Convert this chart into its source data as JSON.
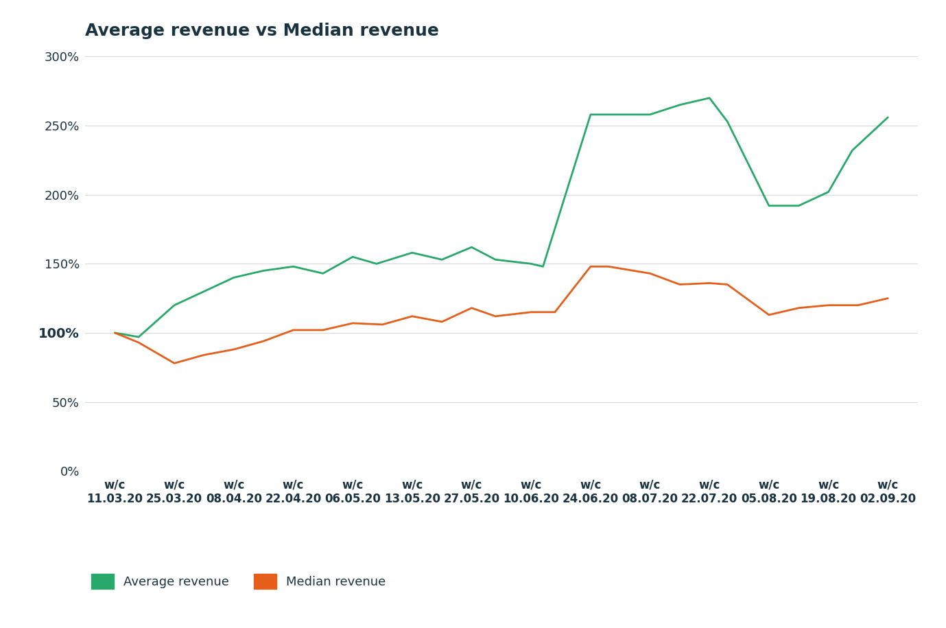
{
  "title": "Average revenue vs Median revenue",
  "x_labels": [
    "w/c\n11.03.20",
    "w/c\n25.03.20",
    "w/c\n08.04.20",
    "w/c\n22.04.20",
    "w/c\n06.05.20",
    "w/c\n13.05.20",
    "w/c\n27.05.20",
    "w/c\n10.06.20",
    "w/c\n24.06.20",
    "w/c\n08.07.20",
    "w/c\n22.07.20",
    "w/c\n05.08.20",
    "w/c\n19.08.20",
    "w/c\n02.09.20"
  ],
  "avg_color": "#28a86a",
  "med_color": "#e55e1a",
  "background_color": "#ffffff",
  "grid_color": "#d8d8d8",
  "title_color": "#1a3340",
  "tick_color": "#1a3340",
  "legend_avg": "Average revenue",
  "legend_med": "Median revenue",
  "ylim": [
    0,
    300
  ],
  "yticks": [
    0,
    50,
    100,
    150,
    200,
    250,
    300
  ],
  "avg_x": [
    0,
    0.4,
    1,
    1.5,
    2,
    2.5,
    3,
    3.5,
    4,
    4.4,
    5,
    5.5,
    6,
    6.4,
    7,
    7.2,
    8,
    8.4,
    9,
    9.5,
    10,
    10.3,
    11,
    11.5,
    12,
    12.4,
    13
  ],
  "avg_y": [
    100,
    97,
    120,
    130,
    140,
    145,
    148,
    143,
    155,
    150,
    158,
    153,
    162,
    153,
    150,
    148,
    258,
    258,
    258,
    265,
    270,
    253,
    192,
    192,
    202,
    232,
    256
  ],
  "med_x": [
    0,
    0.4,
    1,
    1.5,
    2,
    2.5,
    3,
    3.5,
    4,
    4.5,
    5,
    5.5,
    6,
    6.4,
    7,
    7.4,
    8,
    8.3,
    9,
    9.5,
    10,
    10.3,
    11,
    11.5,
    12,
    12.5,
    13
  ],
  "med_y": [
    100,
    93,
    78,
    84,
    88,
    94,
    102,
    102,
    107,
    106,
    112,
    108,
    118,
    112,
    115,
    115,
    148,
    148,
    143,
    135,
    136,
    135,
    113,
    118,
    120,
    120,
    125
  ]
}
